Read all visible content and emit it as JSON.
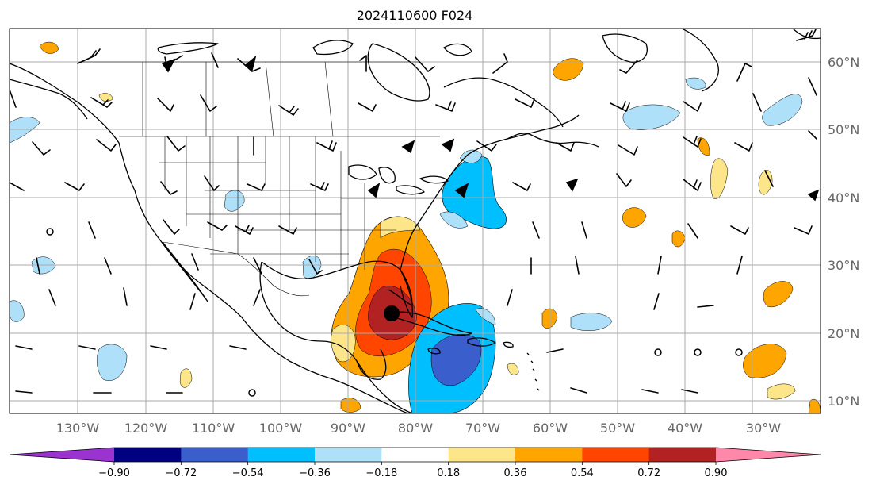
{
  "title": "2024110600 F024",
  "lat_labels": [
    "60°N",
    "50°N",
    "40°N",
    "30°N",
    "20°N",
    "10°N"
  ],
  "lon_labels": [
    "130°W",
    "120°W",
    "110°W",
    "100°W",
    "90°W",
    "80°W",
    "70°W",
    "60°W",
    "50°W",
    "40°W",
    "30°W"
  ],
  "colorbar": {
    "ticks": [
      "−0.90",
      "−0.72",
      "−0.54",
      "−0.36",
      "−0.18",
      "0.18",
      "0.36",
      "0.54",
      "0.72",
      "0.90"
    ],
    "colors": [
      "#9a33d0",
      "#000080",
      "#3a5fcd",
      "#00bfff",
      "#aee0fa",
      "#ffffff",
      "#fde68a",
      "#ffa500",
      "#ff4500",
      "#b22222",
      "#ff88aa"
    ]
  },
  "colors": {
    "coast": "#000000",
    "grid": "#aaaaaa",
    "marker": "#000000"
  }
}
